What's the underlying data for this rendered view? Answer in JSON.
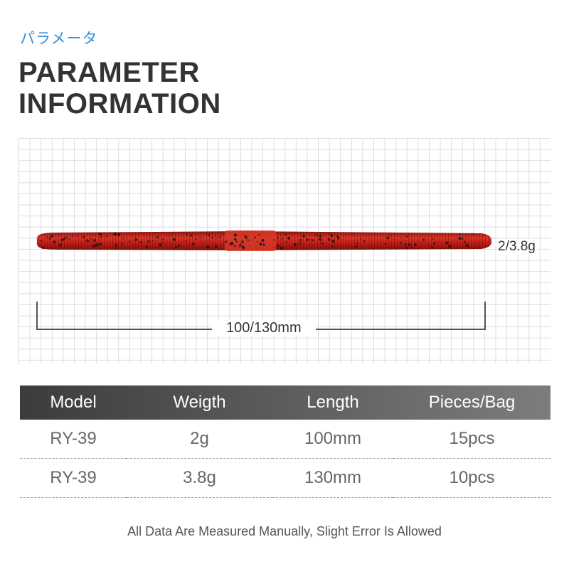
{
  "header": {
    "subtitle_jp": "パラメータ",
    "title_line1": "PARAMETER",
    "title_line2": "INFORMATION"
  },
  "product_image": {
    "weight_label": "2/3.8g",
    "length_label": "100/130mm",
    "worm_color": "#c62018",
    "worm_highlight": "#e84030",
    "fleck_color": "#1a1010"
  },
  "spec_table": {
    "headers": [
      "Model",
      "Weigth",
      "Length",
      "Pieces/Bag"
    ],
    "rows": [
      [
        "RY-39",
        "2g",
        "100mm",
        "15pcs"
      ],
      [
        "RY-39",
        "3.8g",
        "130mm",
        "10pcs"
      ]
    ]
  },
  "footnote": "All Data Are Measured Manually, Slight Error Is Allowed"
}
